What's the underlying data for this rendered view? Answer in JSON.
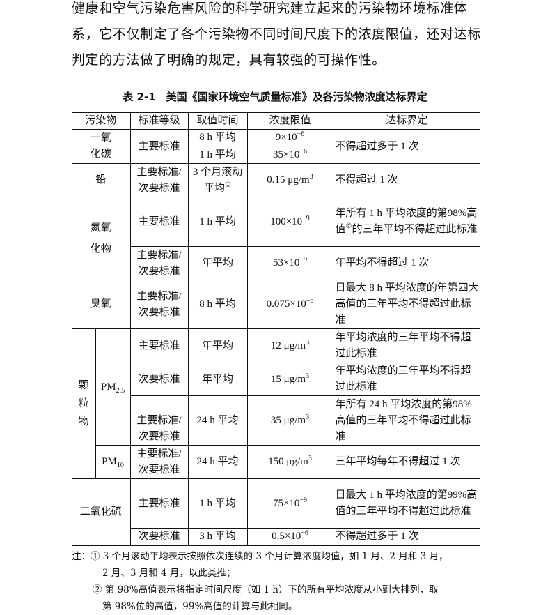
{
  "intro": "健康和空气污染危害风险的科学研究建立起来的污染物环境标准体系，它不仅制定了各个污染物不同时间尺度下的浓度限值，还对达标判定的方法做了明确的规定，具有较强的可操作性。",
  "table_title": "表 2-1　美国《国家环境空气质量标准》及各污染物浓度达标界定",
  "headers": [
    "污染物",
    "标准等级",
    "取值时间",
    "浓度限值",
    "达标界定"
  ],
  "r": {
    "co": {
      "name": "一氧化碳",
      "grade": "主要标准",
      "t1": "8 h 平均",
      "c1": "9×10",
      "e1": "−6",
      "t2": "1 h 平均",
      "c2": "35×10",
      "e2": "−6",
      "crit": "不得超过多于 1 次"
    },
    "pb": {
      "name": "铅",
      "grade": "主要标准/次要标准",
      "time": "3 个月滚动平均",
      "time_sup": "①",
      "conc": "0.15 μg/m",
      "conc_sup": "3",
      "crit": "不得超过 1 次"
    },
    "nox": {
      "name": "氮氧化物",
      "g1": "主要标准",
      "t1": "1 h 平均",
      "c1": "100×10",
      "e1": "−9",
      "k1a": "年所有 1 h 平均浓度的第98%高值",
      "k1sup": "②",
      "k1b": "的三年平均不得超过此标准",
      "g2": "主要标准/次要标准",
      "t2": "年平均",
      "c2": "53×10",
      "e2": "−9",
      "k2": "年平均不得超过 1 次"
    },
    "o3": {
      "name": "臭氧",
      "grade": "主要标准/次要标准",
      "time": "8 h 平均",
      "conc": "0.075×10",
      "exp": "−6",
      "crit": "日最大 8 h 平均浓度的年第四大高值的三年平均不得超过此标准"
    },
    "pm": {
      "name": "颗粒物",
      "pm25": "PM",
      "pm25_sub": "2.5",
      "pm10": "PM",
      "pm10_sub": "10",
      "rows": [
        {
          "grade": "主要标准",
          "time": "年平均",
          "conc": "12 μg/m",
          "sup": "3",
          "crit": "年平均浓度的三年平均不得超过此标准"
        },
        {
          "grade": "次要标准",
          "time": "年平均",
          "conc": "15 μg/m",
          "sup": "3",
          "crit": "年平均浓度的三年平均不得超过此标准"
        },
        {
          "grade": "主要标准/次要标准",
          "time": "24 h 平均",
          "conc": "35 μg/m",
          "sup": "3",
          "crit": "年所有 24 h 平均浓度的第98%高值的三年平均不得超过此标准"
        },
        {
          "grade": "主要标准/次要标准",
          "time": "24 h 平均",
          "conc": "150 μg/m",
          "sup": "3",
          "crit": "三年平均每年不得超过 1 次"
        }
      ]
    },
    "so2": {
      "name": "二氧化硫",
      "g1": "主要标准",
      "t1": "1 h 平均",
      "c1": "75×10",
      "e1": "−9",
      "k1": "日最大 1 h 平均浓度的第99%高值的三年平均不得超过此标准",
      "g2": "次要标准",
      "t2": "3 h 平均",
      "c2": "0.5×10",
      "e2": "−6",
      "k2": "不得超过多于 1 次"
    }
  },
  "notes": {
    "n1": "注：① 3 个月滚动平均表示按照依次连续的 3 个月计算浓度均值，如 1 月、2 月和 3 月，",
    "n1b": "2 月、3 月和 4 月，以此类推；",
    "n2": "② 第 98%高值表示将指定时间尺度（如 1 h）下的所有平均浓度从小到大排列，取",
    "n2b": "第 98%位的高值，99%高值的计算与此相同。"
  }
}
